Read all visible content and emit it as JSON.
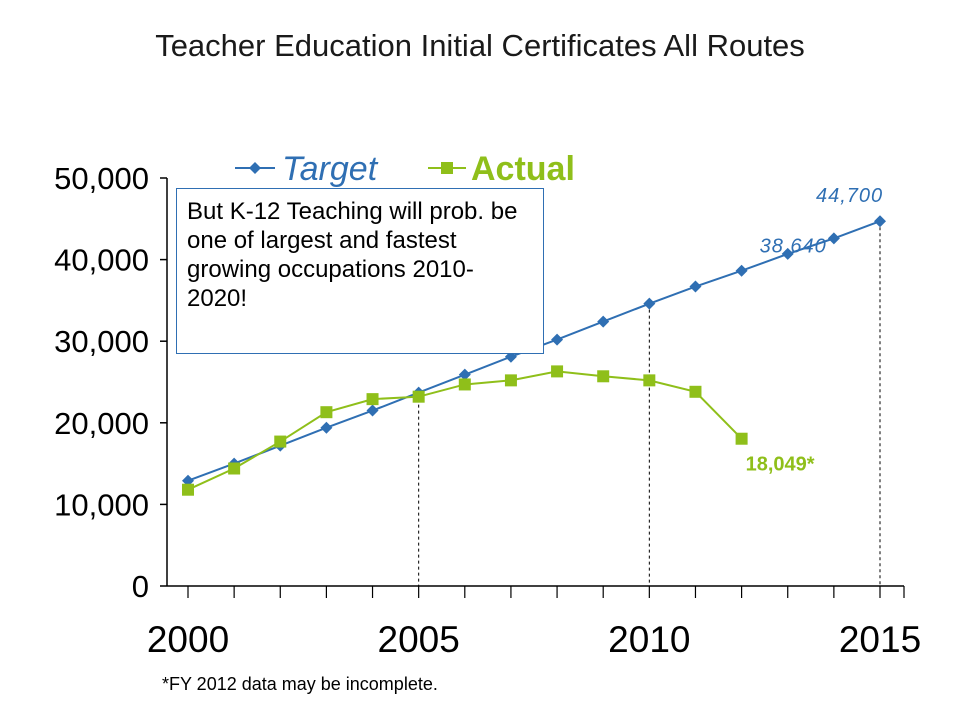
{
  "title": "Teacher Education Initial Certificates All Routes",
  "callout": "But K-12 Teaching will prob. be one of largest and fastest growing occupations 2010-2020!",
  "footnote": "*FY 2012 data may be incomplete.",
  "colors": {
    "target": "#2f6fb3",
    "actual": "#8fbf1a",
    "axis": "#000000"
  },
  "chart_data": {
    "type": "line",
    "xlim": [
      2000,
      2015
    ],
    "ylim": [
      0,
      50000
    ],
    "x_ticks": [
      "2000",
      "2005",
      "2010",
      "2015"
    ],
    "y_ticks": [
      "0",
      "10,000",
      "20,000",
      "30,000",
      "40,000",
      "50,000"
    ],
    "grid": false,
    "legend": "top",
    "series": [
      {
        "name": "Target",
        "color": "#2f6fb3",
        "marker": "diamond",
        "x": [
          2000,
          2001,
          2002,
          2003,
          2004,
          2005,
          2006,
          2007,
          2008,
          2009,
          2010,
          2011,
          2012,
          2013,
          2014,
          2015
        ],
        "y": [
          12900,
          15000,
          17200,
          19400,
          21500,
          23700,
          25900,
          28100,
          30200,
          32400,
          34600,
          36700,
          38640,
          40700,
          42600,
          44700
        ]
      },
      {
        "name": "Actual",
        "color": "#8fbf1a",
        "marker": "square",
        "x": [
          2000,
          2001,
          2002,
          2003,
          2004,
          2005,
          2006,
          2007,
          2008,
          2009,
          2010,
          2011,
          2012
        ],
        "y": [
          11800,
          14400,
          17700,
          21300,
          22900,
          23200,
          24700,
          25200,
          26300,
          25700,
          25200,
          23800,
          18049
        ]
      }
    ],
    "annotations": [
      {
        "text": "44,700",
        "x": 2015,
        "y": 44700,
        "color": "#2f6fb3",
        "style": "italic"
      },
      {
        "text": "38,640",
        "x": 2012,
        "y": 38640,
        "color": "#2f6fb3",
        "style": "italic"
      },
      {
        "text": "18,049*",
        "x": 2012,
        "y": 18049,
        "color": "#8fbf1a",
        "style": "bold"
      }
    ],
    "reference_lines_x": [
      2005,
      2010,
      2015
    ]
  }
}
